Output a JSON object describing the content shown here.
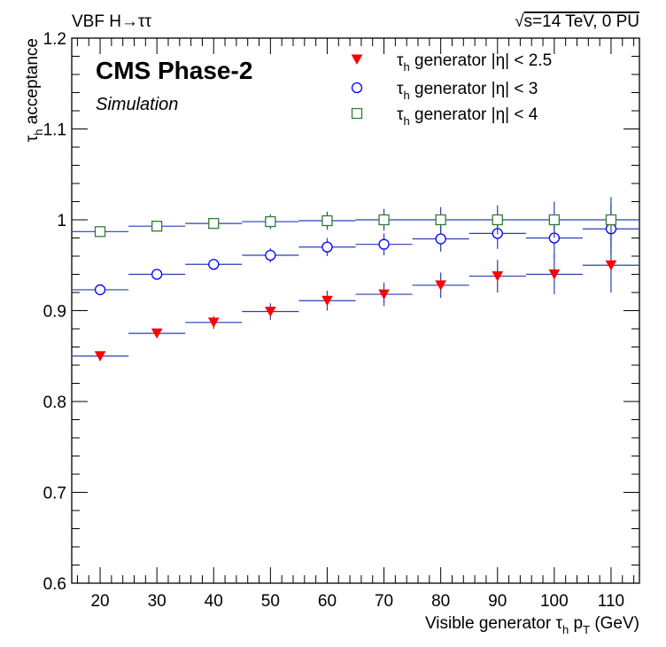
{
  "header": {
    "left": "VBF H→ττ",
    "right_sqrt": "√",
    "right_rest": "s=14 TeV, 0 PU"
  },
  "labels": {
    "experiment": "CMS Phase-2",
    "status": "Simulation"
  },
  "chart_data": {
    "type": "scatter",
    "xlabel": {
      "main": "Visible generator ",
      "tau": "τ",
      "tau_sub": "h",
      "p": " p",
      "p_sub": "T",
      "unit": " (GeV)"
    },
    "ylabel": {
      "tau": "τ",
      "tau_sub": "h",
      "main": " acceptance"
    },
    "xlim": [
      15,
      115
    ],
    "ylim": [
      0.6,
      1.2
    ],
    "x_ticks": [
      20,
      30,
      40,
      50,
      60,
      70,
      80,
      90,
      100,
      110
    ],
    "y_ticks": [
      0.6,
      0.7,
      0.8,
      0.9,
      1.0,
      1.1,
      1.2
    ],
    "y_tick_labels": [
      "0.6",
      "0.7",
      "0.8",
      "0.9",
      "1",
      "1.1",
      "1.2"
    ],
    "x": [
      20,
      30,
      40,
      50,
      60,
      70,
      80,
      90,
      100,
      110
    ],
    "x_bin_halfwidth": 5,
    "legend_position": "top-right",
    "series": [
      {
        "name_parts": [
          "τ",
          "h",
          " generator |η| < 2.5"
        ],
        "marker": "triangle-down-filled",
        "color": "#ff0000",
        "error_color": "#2a3eb1",
        "values": [
          0.85,
          0.875,
          0.887,
          0.899,
          0.911,
          0.918,
          0.928,
          0.938,
          0.94,
          0.95
        ],
        "errors": [
          0.005,
          0.005,
          0.007,
          0.009,
          0.011,
          0.013,
          0.014,
          0.018,
          0.022,
          0.03
        ]
      },
      {
        "name_parts": [
          "τ",
          "h",
          " generator |η| < 3"
        ],
        "marker": "circle-open",
        "color": "#0000ff",
        "error_color": "#2a3eb1",
        "values": [
          0.923,
          0.94,
          0.951,
          0.961,
          0.97,
          0.973,
          0.979,
          0.985,
          0.98,
          0.99
        ],
        "errors": [
          0.004,
          0.004,
          0.006,
          0.008,
          0.01,
          0.012,
          0.014,
          0.017,
          0.022,
          0.027
        ]
      },
      {
        "name_parts": [
          "τ",
          "h",
          " generator |η| < 4"
        ],
        "marker": "square-open",
        "color": "#2e7d32",
        "error_color": "#2a3eb1",
        "values": [
          0.987,
          0.993,
          0.996,
          0.998,
          0.999,
          1.0,
          1.0,
          1.0,
          1.0,
          1.0
        ],
        "errors": [
          0.003,
          0.003,
          0.005,
          0.008,
          0.01,
          0.012,
          0.014,
          0.016,
          0.02,
          0.025
        ]
      }
    ]
  }
}
